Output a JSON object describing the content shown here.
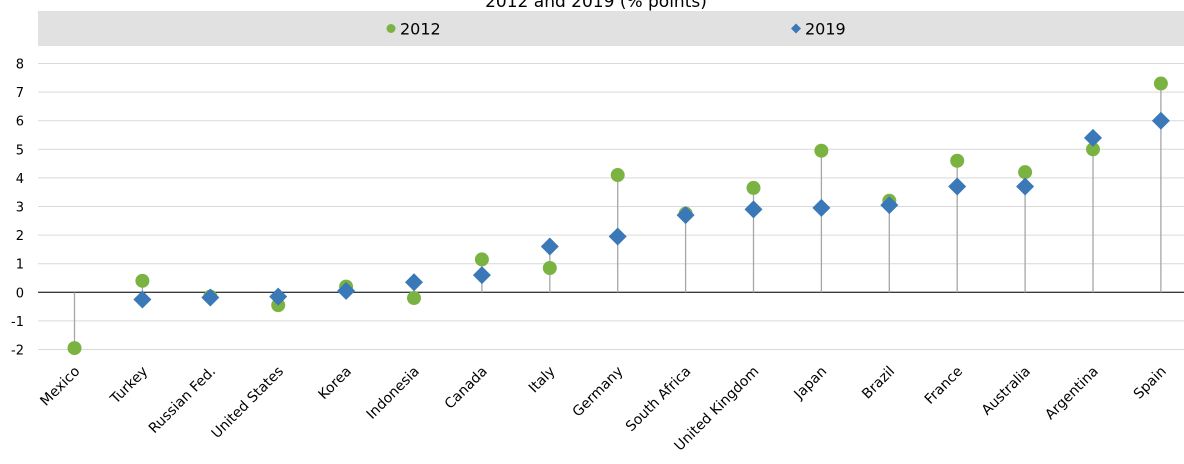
{
  "chart_data": {
    "type": "scatter",
    "title": "2012 and 2019 (% points)",
    "categories": [
      "Mexico",
      "Turkey",
      "Russian Fed.",
      "United States",
      "Korea",
      "Indonesia",
      "Canada",
      "Italy",
      "Germany",
      "South Africa",
      "United Kingdom",
      "Japan",
      "Brazil",
      "France",
      "Australia",
      "Argentina",
      "Spain"
    ],
    "series": [
      {
        "name": "2012",
        "marker": "circle",
        "color": "#7bb342",
        "values": [
          -1.95,
          0.4,
          -0.15,
          -0.45,
          0.2,
          -0.2,
          1.15,
          0.85,
          4.1,
          2.75,
          3.65,
          4.95,
          3.2,
          4.6,
          4.2,
          5.0,
          7.3
        ]
      },
      {
        "name": "2019",
        "marker": "diamond",
        "color": "#3a78b8",
        "values": [
          null,
          -0.25,
          -0.18,
          -0.15,
          0.05,
          0.35,
          0.6,
          1.6,
          1.95,
          2.7,
          2.9,
          2.95,
          3.05,
          3.7,
          3.7,
          5.4,
          6.0
        ]
      }
    ],
    "ylim": [
      -2,
      8
    ],
    "yticks": [
      -2,
      -1,
      0,
      1,
      2,
      3,
      4,
      5,
      6,
      7,
      8
    ],
    "grid": true,
    "legend": "top",
    "connector_color": "#a6a6a6",
    "legend_band_color": "#e1e1e1"
  }
}
